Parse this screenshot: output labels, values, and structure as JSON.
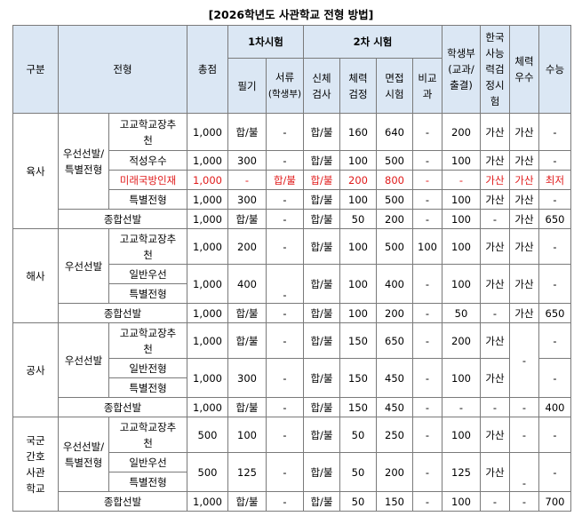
{
  "title": "[2026학년도 사관학교 전형 방법]",
  "headers": {
    "gubun": "구분",
    "jeonhyeong": "전형",
    "total": "총점",
    "first_exam": "1차시험",
    "second_exam": "2차 시험",
    "written": "필기",
    "documents": "서류",
    "documents_sub": "(학생부)",
    "physical_check1": "신체",
    "physical_check2": "검사",
    "fitness1": "체력",
    "fitness2": "검정",
    "interview1": "면접",
    "interview2": "시험",
    "nonsubject1": "비교",
    "nonsubject2": "과",
    "record1": "학생부",
    "record2": "(교과/",
    "record3": "출결)",
    "history1": "한국",
    "history2": "사능",
    "history3": "력검",
    "history4": "정시",
    "history5": "험",
    "fitness_excel1": "체력",
    "fitness_excel2": "우수",
    "csat": "수능"
  },
  "schools": {
    "army": "육사",
    "navy": "해사",
    "airforce": "공사",
    "nursing1": "국군",
    "nursing2": "간호",
    "nursing3": "사관",
    "nursing4": "학교"
  },
  "groups": {
    "army_priority1": "우선선발/",
    "army_priority2": "특별전형",
    "navy_priority": "우선선발",
    "air_priority": "우선선발",
    "nurse_priority1": "우선선발/",
    "nurse_priority2": "특별전형"
  },
  "rows": {
    "a1": {
      "type1": "고교학교장추",
      "type2": "천",
      "total": "1,000",
      "written": "합/불",
      "doc": "-",
      "phys": "합/불",
      "fit": "160",
      "interview": "640",
      "nonsub": "-",
      "record": "200",
      "history": "가산",
      "fitex": "가산",
      "csat": "-"
    },
    "a2": {
      "type": "적성우수",
      "total": "1,000",
      "written": "300",
      "doc": "-",
      "phys": "합/불",
      "fit": "100",
      "interview": "500",
      "nonsub": "-",
      "record": "100",
      "history": "가산",
      "fitex": "가산",
      "csat": "-"
    },
    "a3": {
      "type": "미래국방인재",
      "total": "1,000",
      "written": "-",
      "doc": "합/불",
      "phys": "합/불",
      "fit": "200",
      "interview": "800",
      "nonsub": "-",
      "record": "-",
      "history": "가산",
      "fitex": "가산",
      "csat": "최저"
    },
    "a4": {
      "type": "특별전형",
      "total": "1,000",
      "written": "300",
      "doc": "-",
      "phys": "합/불",
      "fit": "100",
      "interview": "500",
      "nonsub": "-",
      "record": "100",
      "history": "가산",
      "fitex": "가산",
      "csat": "-"
    },
    "a5": {
      "type": "종합선발",
      "total": "1,000",
      "written": "합/불",
      "doc": "-",
      "phys": "합/불",
      "fit": "50",
      "interview": "200",
      "nonsub": "-",
      "record": "100",
      "history": "-",
      "fitex": "가산",
      "csat": "650"
    },
    "n1": {
      "type1": "고교학교장추",
      "type2": "천",
      "total": "1,000",
      "written": "200",
      "doc": "-",
      "phys": "합/불",
      "fit": "100",
      "interview": "500",
      "nonsub": "100",
      "record": "100",
      "history": "가산",
      "fitex": "가산",
      "csat": "-"
    },
    "n2": {
      "type_a": "일반우선",
      "type_b": "특별전형",
      "total": "1,000",
      "written": "400",
      "doc": "-",
      "phys": "합/불",
      "fit": "100",
      "interview": "400",
      "nonsub": "-",
      "record": "100",
      "history": "가산",
      "fitex": "가산",
      "csat": "-"
    },
    "n3": {
      "type": "종합선발",
      "total": "1,000",
      "written": "합/불",
      "doc": "-",
      "phys": "합/불",
      "fit": "100",
      "interview": "200",
      "nonsub": "-",
      "record": "50",
      "history": "-",
      "fitex": "가산",
      "csat": "650"
    },
    "f1": {
      "type1": "고교학교장추",
      "type2": "천",
      "total": "1,000",
      "written": "합/불",
      "doc": "-",
      "phys": "합/불",
      "fit": "150",
      "interview": "650",
      "nonsub": "-",
      "record": "200",
      "history": "가산",
      "fitex": "-",
      "csat": "-"
    },
    "f2": {
      "type_a": "일반전형",
      "type_b": "특별전형",
      "total": "1,000",
      "written": "300",
      "doc": "-",
      "phys": "합/불",
      "fit": "150",
      "interview": "450",
      "nonsub": "-",
      "record": "100",
      "history": "가산",
      "csat": "-"
    },
    "f3": {
      "type": "종합선발",
      "total": "1,000",
      "written": "합/불",
      "doc": "-",
      "phys": "합/불",
      "fit": "150",
      "interview": "450",
      "nonsub": "-",
      "record": "-",
      "history": "-",
      "fitex": "-",
      "csat": "400"
    },
    "k1": {
      "type1": "고교학교장추",
      "type2": "천",
      "total": "500",
      "written": "100",
      "doc": "-",
      "phys": "합/불",
      "fit": "50",
      "interview": "250",
      "nonsub": "-",
      "record": "100",
      "history": "가산",
      "fitex": "-",
      "csat": "-"
    },
    "k2": {
      "type_a": "일반우선",
      "type_b": "특별전형",
      "total": "500",
      "written": "125",
      "doc": "-",
      "phys": "합/불",
      "fit": "50",
      "interview": "200",
      "nonsub": "-",
      "record": "125",
      "history": "가산",
      "fitex": "-",
      "csat": "-"
    },
    "k3": {
      "type": "종합선발",
      "total": "1,000",
      "written": "합/불",
      "doc": "-",
      "phys": "합/불",
      "fit": "50",
      "interview": "150",
      "nonsub": "-",
      "record": "100",
      "history": "-",
      "fitex": "-",
      "csat": "700"
    }
  }
}
